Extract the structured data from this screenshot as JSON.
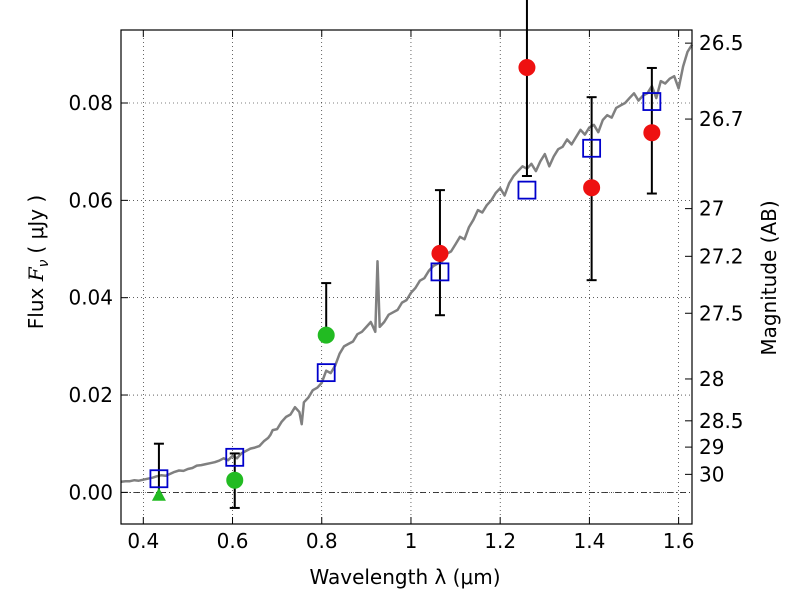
{
  "chart_data": {
    "type": "scatter",
    "xlabel": "Wavelength  λ (μm)",
    "ylabel": "Flux  F_ν  ( μJy )",
    "ylabel_parts": {
      "prefix": "Flux ",
      "symbol": "F",
      "subscript": "ν",
      "unit": "( μJy )"
    },
    "y2label": "Magnitude (AB)",
    "xlim": [
      0.35,
      1.63
    ],
    "ylim": [
      -0.0065,
      0.095
    ],
    "xticks": [
      0.4,
      0.6,
      0.8,
      1.0,
      1.2,
      1.4,
      1.6
    ],
    "xtick_labels": [
      "0.4",
      "0.6",
      "0.8",
      "1",
      "1.2",
      "1.4",
      "1.6"
    ],
    "yticks": [
      0.0,
      0.02,
      0.04,
      0.06,
      0.08
    ],
    "ytick_labels": [
      "0.00",
      "0.02",
      "0.04",
      "0.06",
      "0.08"
    ],
    "y2ticks": [
      {
        "label": "26.5",
        "flux": 0.0923
      },
      {
        "label": "26.7",
        "flux": 0.0767
      },
      {
        "label": "27",
        "flux": 0.0583
      },
      {
        "label": "27.2",
        "flux": 0.0485
      },
      {
        "label": "27.5",
        "flux": 0.0368
      },
      {
        "label": "28",
        "flux": 0.0233
      },
      {
        "label": "28.5",
        "flux": 0.0147
      },
      {
        "label": "29",
        "flux": 0.0093
      },
      {
        "label": "30",
        "flux": 0.0037
      }
    ],
    "grid": true,
    "zero_line": 0.0,
    "series": [
      {
        "name": "model spectrum",
        "kind": "line",
        "color": "#808080",
        "x": [
          0.35,
          0.36,
          0.37,
          0.38,
          0.39,
          0.4,
          0.41,
          0.42,
          0.43,
          0.44,
          0.45,
          0.46,
          0.47,
          0.48,
          0.49,
          0.5,
          0.51,
          0.52,
          0.53,
          0.54,
          0.55,
          0.56,
          0.57,
          0.58,
          0.59,
          0.6,
          0.61,
          0.62,
          0.63,
          0.64,
          0.65,
          0.66,
          0.67,
          0.68,
          0.685,
          0.69,
          0.7,
          0.71,
          0.72,
          0.73,
          0.74,
          0.75,
          0.755,
          0.76,
          0.77,
          0.78,
          0.79,
          0.8,
          0.81,
          0.82,
          0.83,
          0.84,
          0.85,
          0.86,
          0.87,
          0.88,
          0.89,
          0.9,
          0.91,
          0.92,
          0.925,
          0.93,
          0.94,
          0.95,
          0.96,
          0.97,
          0.98,
          0.99,
          1.0,
          1.01,
          1.02,
          1.03,
          1.04,
          1.05,
          1.06,
          1.07,
          1.08,
          1.09,
          1.1,
          1.11,
          1.12,
          1.13,
          1.14,
          1.15,
          1.16,
          1.17,
          1.18,
          1.19,
          1.2,
          1.21,
          1.22,
          1.23,
          1.24,
          1.25,
          1.26,
          1.27,
          1.28,
          1.29,
          1.3,
          1.31,
          1.32,
          1.33,
          1.34,
          1.35,
          1.36,
          1.37,
          1.38,
          1.39,
          1.4,
          1.41,
          1.42,
          1.43,
          1.44,
          1.45,
          1.46,
          1.47,
          1.48,
          1.49,
          1.5,
          1.51,
          1.52,
          1.53,
          1.54,
          1.55,
          1.56,
          1.57,
          1.58,
          1.59,
          1.6,
          1.61,
          1.62,
          1.63
        ],
        "y": [
          0.0022,
          0.0023,
          0.0023,
          0.0025,
          0.0024,
          0.0026,
          0.0028,
          0.003,
          0.0033,
          0.0035,
          0.0034,
          0.0038,
          0.0042,
          0.0045,
          0.0044,
          0.0048,
          0.005,
          0.0055,
          0.0056,
          0.0058,
          0.006,
          0.0062,
          0.0065,
          0.007,
          0.0066,
          0.0075,
          0.007,
          0.008,
          0.0085,
          0.009,
          0.0092,
          0.0095,
          0.0105,
          0.0112,
          0.0118,
          0.0128,
          0.013,
          0.0145,
          0.0155,
          0.016,
          0.0175,
          0.0165,
          0.014,
          0.0185,
          0.0195,
          0.021,
          0.0215,
          0.0225,
          0.025,
          0.0245,
          0.026,
          0.0285,
          0.03,
          0.0305,
          0.031,
          0.0325,
          0.033,
          0.034,
          0.035,
          0.033,
          0.0475,
          0.034,
          0.035,
          0.0365,
          0.037,
          0.0375,
          0.039,
          0.0395,
          0.041,
          0.042,
          0.0435,
          0.044,
          0.0455,
          0.0465,
          0.047,
          0.0475,
          0.049,
          0.0495,
          0.051,
          0.0525,
          0.052,
          0.0545,
          0.056,
          0.058,
          0.0575,
          0.059,
          0.06,
          0.0615,
          0.0625,
          0.061,
          0.0635,
          0.065,
          0.066,
          0.067,
          0.0665,
          0.0675,
          0.066,
          0.068,
          0.0695,
          0.067,
          0.069,
          0.0705,
          0.071,
          0.0725,
          0.0715,
          0.073,
          0.0745,
          0.0735,
          0.075,
          0.0755,
          0.074,
          0.0765,
          0.0775,
          0.077,
          0.079,
          0.0795,
          0.08,
          0.081,
          0.082,
          0.0805,
          0.0815,
          0.082,
          0.0835,
          0.081,
          0.0845,
          0.084,
          0.085,
          0.0855,
          0.083,
          0.0875,
          0.0905,
          0.092
        ]
      },
      {
        "name": "model bands",
        "kind": "square",
        "color": "#0000cc",
        "x": [
          0.435,
          0.605,
          0.81,
          1.065,
          1.26,
          1.405,
          1.54
        ],
        "y": [
          0.0028,
          0.0072,
          0.0246,
          0.0453,
          0.0621,
          0.0707,
          0.0803
        ]
      },
      {
        "name": "optical detections",
        "kind": "circle",
        "color": "#22bb22",
        "x": [
          0.605,
          0.81
        ],
        "y": [
          0.0025,
          0.0323
        ],
        "err_low": [
          0.0057,
          null
        ],
        "err_high": [
          0.0055,
          0.0107
        ]
      },
      {
        "name": "NIR detections",
        "kind": "circle",
        "color": "#ee1111",
        "x": [
          1.065,
          1.26,
          1.405,
          1.54
        ],
        "y": [
          0.0491,
          0.0873,
          0.0626,
          0.0739
        ],
        "err_low": [
          0.0127,
          0.0223,
          0.019,
          0.0125
        ],
        "err_high": [
          0.013,
          0.02,
          0.0186,
          0.0133
        ]
      },
      {
        "name": "upper limit",
        "kind": "triangle",
        "color": "#22bb22",
        "x": [
          0.435
        ],
        "y": [
          -0.0005
        ],
        "err_high": [
          0.0105
        ]
      }
    ]
  }
}
